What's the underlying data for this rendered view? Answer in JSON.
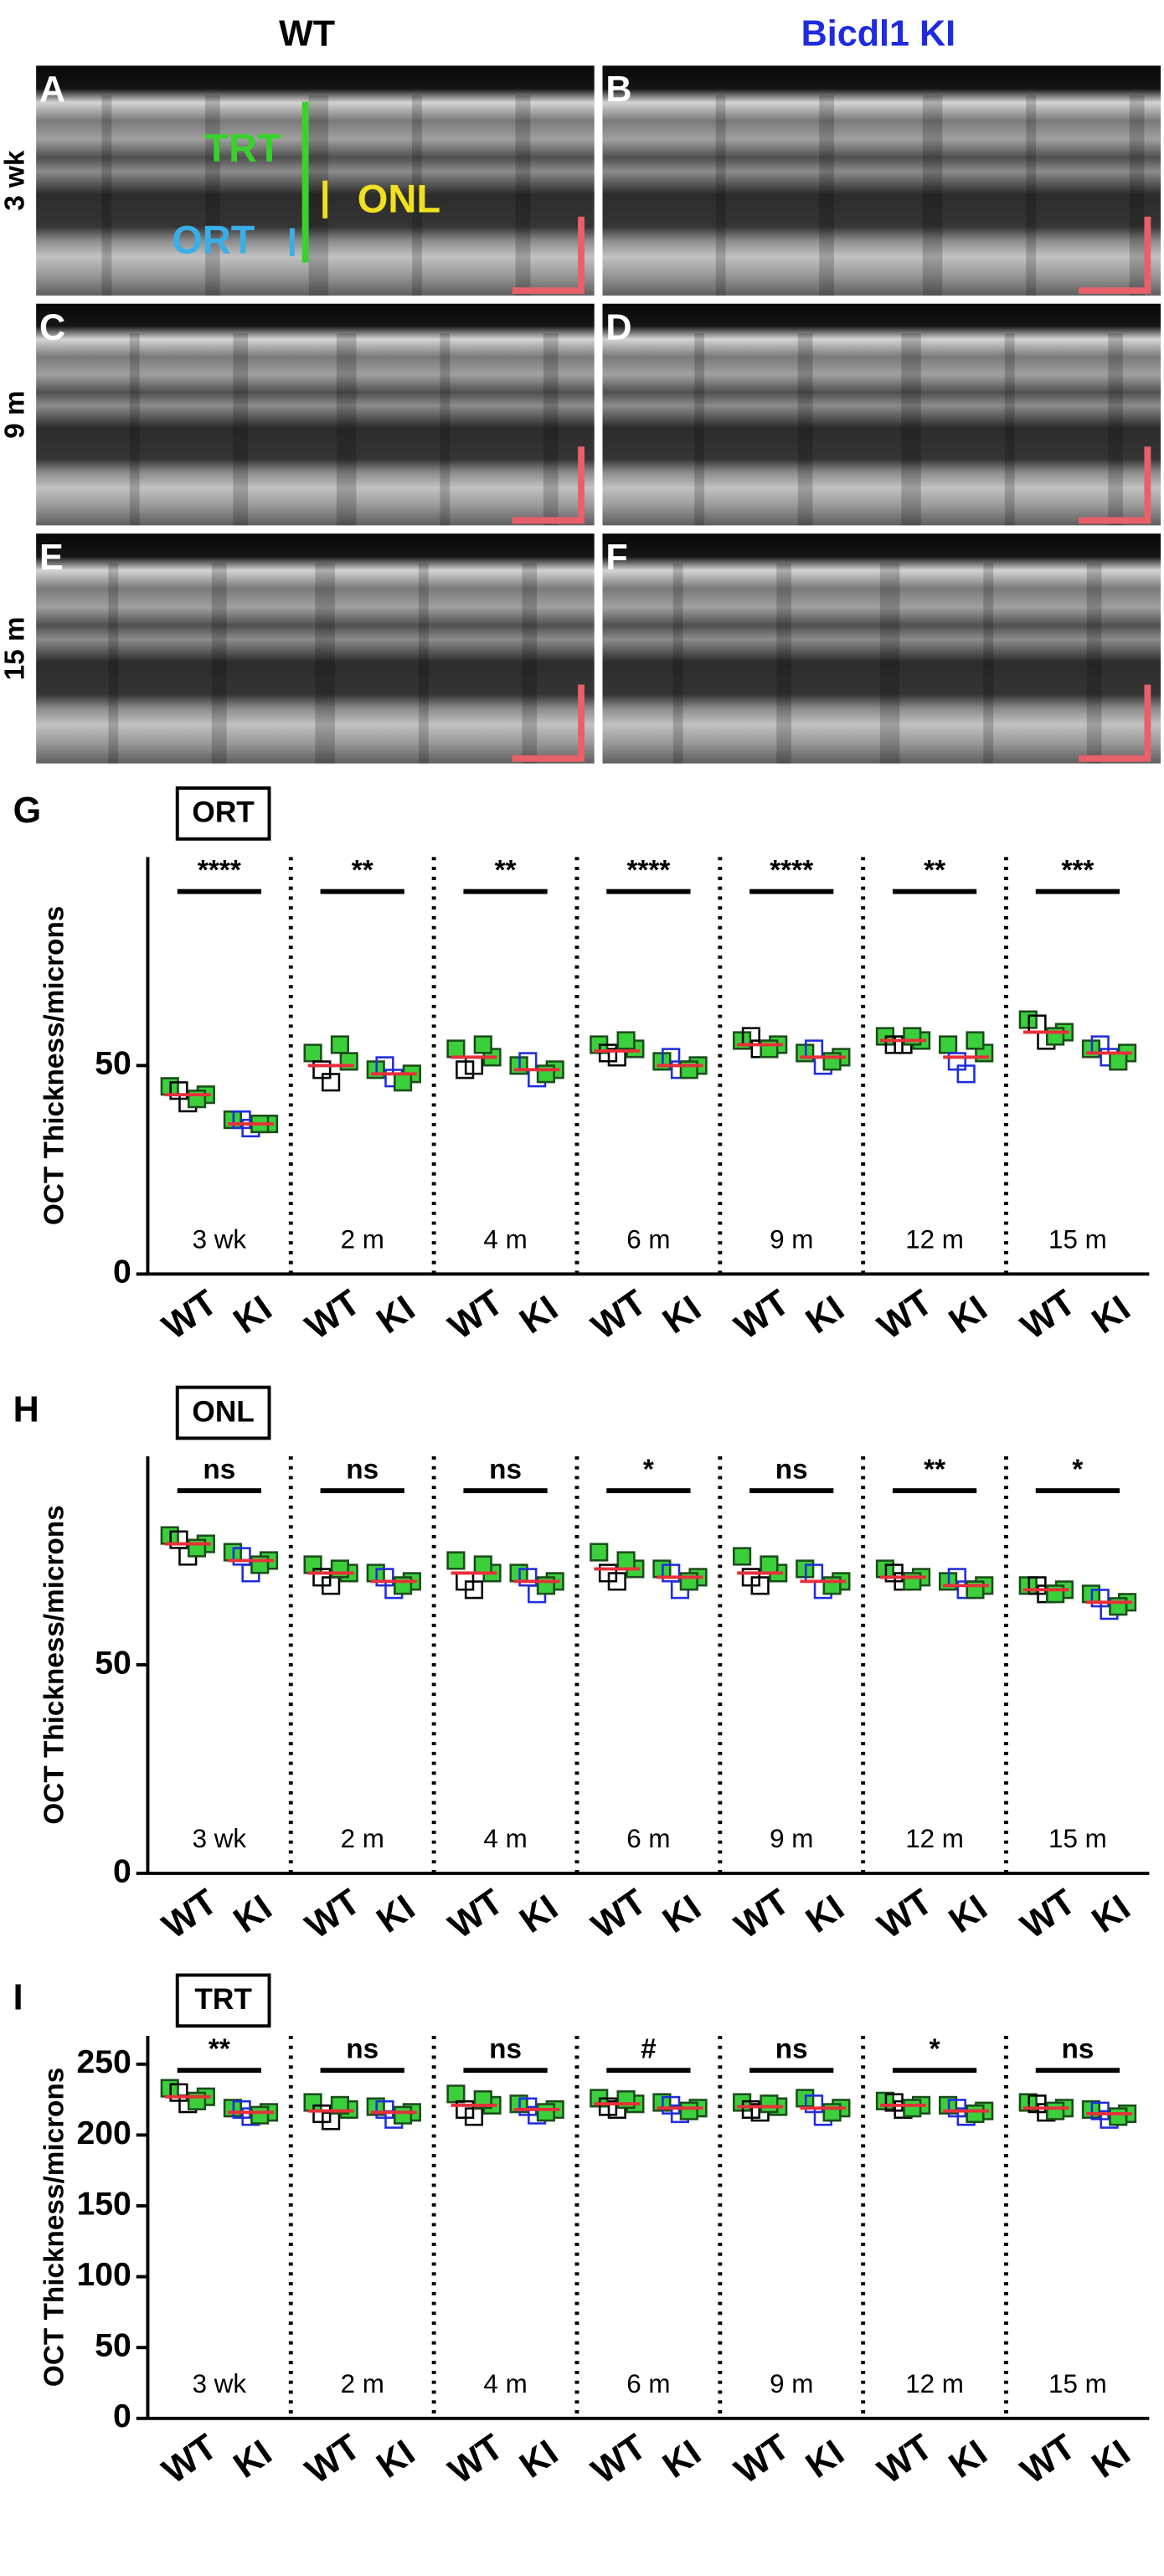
{
  "image_panels": {
    "column_titles": [
      "WT",
      "Bicdl1 KI"
    ],
    "row_labels": [
      "3 wk",
      "9 m",
      "15 m"
    ],
    "panel_letters": [
      "A",
      "B",
      "C",
      "D",
      "E",
      "F"
    ],
    "annotations": [
      "TRT",
      "ONL",
      "ORT"
    ]
  },
  "chart_data": [
    {
      "type": "scatter",
      "panel": "G",
      "title": "ORT",
      "ylabel": "OCT Thickness/microns",
      "ylim": [
        0,
        100
      ],
      "yticks": [
        0,
        50
      ],
      "groups": [
        "3 wk",
        "2 m",
        "4 m",
        "6 m",
        "9 m",
        "12 m",
        "15 m"
      ],
      "categories": [
        "WT",
        "KI",
        "WT",
        "KI",
        "WT",
        "KI",
        "WT",
        "KI",
        "WT",
        "KI",
        "WT",
        "KI",
        "WT",
        "KI"
      ],
      "significance": [
        "****",
        "**",
        "**",
        "****",
        "****",
        "**",
        "***"
      ],
      "means": [
        43,
        36,
        50,
        48,
        52,
        49,
        53.5,
        50,
        55,
        52,
        56,
        52,
        58,
        53
      ],
      "points": [
        [
          45,
          41,
          43,
          44,
          42
        ],
        [
          37,
          35,
          36,
          37,
          36
        ],
        [
          53,
          46,
          51,
          49,
          55
        ],
        [
          49,
          47,
          48,
          50,
          46
        ],
        [
          54,
          50,
          52,
          49,
          55
        ],
        [
          50,
          47,
          49,
          51,
          48
        ],
        [
          55,
          52,
          54,
          53,
          56
        ],
        [
          51,
          49,
          50,
          52,
          49
        ],
        [
          56,
          54,
          55,
          57,
          54
        ],
        [
          53,
          50,
          52,
          54,
          51
        ],
        [
          57,
          55,
          56,
          55,
          57
        ],
        [
          55,
          48,
          53,
          51,
          56
        ],
        [
          61,
          56,
          58,
          60,
          57
        ],
        [
          54,
          52,
          53,
          55,
          51
        ]
      ],
      "color_wt": "#000000",
      "color_ki": "#1f2be0",
      "color_filled": "#3ccf3c",
      "mean_color": "#e8303a"
    },
    {
      "type": "scatter",
      "panel": "H",
      "title": "ONL",
      "ylabel": "OCT Thickness/microns",
      "ylim": [
        0,
        100
      ],
      "yticks": [
        0,
        50
      ],
      "groups": [
        "3 wk",
        "2 m",
        "4 m",
        "6 m",
        "9 m",
        "12 m",
        "15 m"
      ],
      "categories": [
        "WT",
        "KI",
        "WT",
        "KI",
        "WT",
        "KI",
        "WT",
        "KI",
        "WT",
        "KI",
        "WT",
        "KI",
        "WT",
        "KI"
      ],
      "significance": [
        "ns",
        "ns",
        "ns",
        "*",
        "ns",
        "**",
        "*"
      ],
      "means": [
        79,
        75,
        72,
        70,
        72,
        70,
        73,
        71,
        72,
        70,
        71,
        69,
        68,
        65
      ],
      "points": [
        [
          81,
          76,
          79,
          80,
          78
        ],
        [
          77,
          72,
          75,
          76,
          74
        ],
        [
          74,
          69,
          72,
          71,
          73
        ],
        [
          72,
          68,
          70,
          71,
          69
        ],
        [
          75,
          68,
          72,
          70,
          74
        ],
        [
          72,
          67,
          70,
          71,
          69
        ],
        [
          77,
          70,
          73,
          72,
          75
        ],
        [
          73,
          68,
          71,
          72,
          70
        ],
        [
          76,
          69,
          72,
          71,
          74
        ],
        [
          73,
          68,
          70,
          72,
          69
        ],
        [
          73,
          70,
          71,
          72,
          70
        ],
        [
          70,
          68,
          69,
          71,
          68
        ],
        [
          69,
          67,
          68,
          69,
          67
        ],
        [
          67,
          63,
          65,
          66,
          64
        ]
      ],
      "color_wt": "#000000",
      "color_ki": "#1f2be0",
      "color_filled": "#3ccf3c",
      "mean_color": "#e8303a"
    },
    {
      "type": "scatter",
      "panel": "I",
      "title": "TRT",
      "ylabel": "OCT Thickness/microns",
      "ylim": [
        0,
        270
      ],
      "yticks": [
        0,
        50,
        100,
        150,
        200,
        250
      ],
      "groups": [
        "3 wk",
        "2 m",
        "4 m",
        "6 m",
        "9 m",
        "12 m",
        "15 m"
      ],
      "categories": [
        "WT",
        "KI",
        "WT",
        "KI",
        "WT",
        "KI",
        "WT",
        "KI",
        "WT",
        "KI",
        "WT",
        "KI",
        "WT",
        "KI"
      ],
      "significance": [
        "**",
        "ns",
        "ns",
        "#",
        "ns",
        "*",
        "ns"
      ],
      "means": [
        227,
        216,
        217,
        216,
        221,
        218,
        222,
        219,
        220,
        219,
        221,
        217,
        219,
        215
      ],
      "points": [
        [
          233,
          222,
          227,
          230,
          224
        ],
        [
          219,
          213,
          216,
          218,
          214
        ],
        [
          223,
          210,
          218,
          215,
          221
        ],
        [
          220,
          211,
          216,
          218,
          214
        ],
        [
          229,
          213,
          221,
          218,
          225
        ],
        [
          222,
          214,
          218,
          220,
          216
        ],
        [
          226,
          218,
          222,
          220,
          225
        ],
        [
          223,
          215,
          219,
          221,
          217
        ],
        [
          223,
          216,
          220,
          218,
          222
        ],
        [
          226,
          213,
          219,
          222,
          216
        ],
        [
          224,
          218,
          221,
          223,
          219
        ],
        [
          221,
          213,
          217,
          219,
          215
        ],
        [
          223,
          216,
          219,
          222,
          217
        ],
        [
          218,
          211,
          215,
          217,
          213
        ]
      ],
      "color_wt": "#000000",
      "color_ki": "#1f2be0",
      "color_filled": "#3ccf3c",
      "mean_color": "#e8303a"
    }
  ]
}
